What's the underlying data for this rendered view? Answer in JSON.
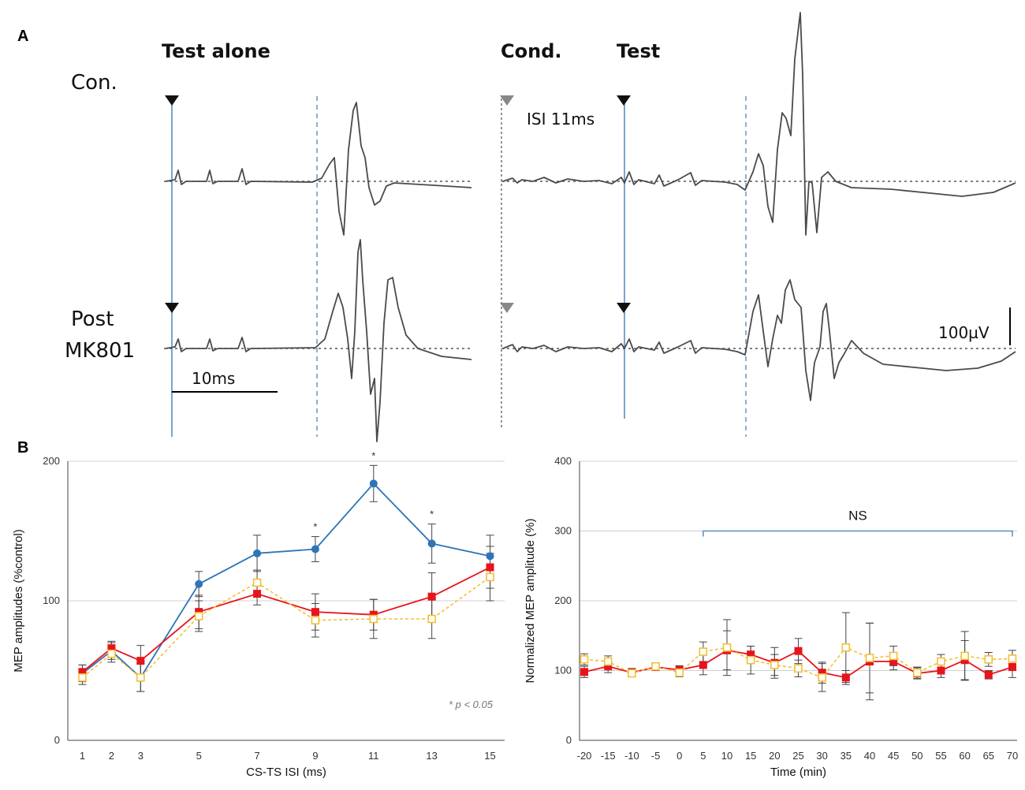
{
  "panel_a": {
    "letter": "A",
    "header_test_alone": "Test alone",
    "header_cond": "Cond.",
    "header_test": "Test",
    "row_con": "Con.",
    "row_post_line1": "Post",
    "row_post_line2": "MK801",
    "isi_label": "ISI 11ms",
    "time_scale": "10ms",
    "amp_scale": "100µV"
  },
  "panel_b_letter": "B",
  "chart_data": [
    {
      "type": "line",
      "title": "",
      "xlabel": "CS-TS ISI (ms)",
      "ylabel": "MEP amplitudes (%control)",
      "x": [
        1,
        2,
        3,
        5,
        7,
        9,
        11,
        13,
        15
      ],
      "xlim": [
        0.5,
        15.5
      ],
      "ylim": [
        0,
        200
      ],
      "yticks": [
        0,
        100,
        200
      ],
      "grid": true,
      "annotation": "* p < 0.05",
      "significance_at": [
        9,
        11,
        13
      ],
      "series": [
        {
          "name": "blue",
          "color": "#2e75b6",
          "marker": "circle",
          "dashed": false,
          "values": [
            48,
            64,
            45,
            112,
            134,
            137,
            184,
            141,
            132
          ],
          "errors": [
            6,
            6,
            10,
            9,
            13,
            9,
            13,
            14,
            15
          ]
        },
        {
          "name": "red",
          "color": "#e8141b",
          "marker": "square",
          "dashed": false,
          "values": [
            49,
            66,
            57,
            92,
            105,
            92,
            90,
            103,
            124
          ],
          "errors": [
            5,
            5,
            11,
            12,
            8,
            13,
            11,
            17,
            15
          ]
        },
        {
          "name": "yellow",
          "color": "#f2c037",
          "marker": "open-square",
          "dashed": true,
          "values": [
            45,
            62,
            45,
            89,
            113,
            86,
            87,
            87,
            117
          ],
          "errors": [
            5,
            6,
            10,
            11,
            9,
            12,
            14,
            14,
            17
          ]
        }
      ]
    },
    {
      "type": "line",
      "title": "",
      "xlabel": "Time (min)",
      "ylabel": "Normalized MEP amplitude (%)",
      "x": [
        -20,
        -15,
        -10,
        -5,
        0,
        5,
        10,
        15,
        20,
        25,
        30,
        35,
        40,
        45,
        50,
        55,
        60,
        65,
        70
      ],
      "xticks": [
        "-20",
        "-15",
        "-10",
        "-5",
        "0",
        "5",
        "10",
        "15",
        "20",
        "25",
        "30",
        "35",
        "40",
        "45",
        "50",
        "55",
        "60",
        "65",
        "70"
      ],
      "xlim": [
        -21,
        71
      ],
      "ylim": [
        0,
        400
      ],
      "yticks": [
        0,
        100,
        200,
        300,
        400
      ],
      "grid": true,
      "bracket": {
        "label": "NS",
        "from": 5,
        "to": 70,
        "y": 300
      },
      "series": [
        {
          "name": "red",
          "color": "#e8141b",
          "marker": "square",
          "dashed": false,
          "values": [
            98,
            106,
            97,
            105,
            101,
            108,
            129,
            123,
            111,
            128,
            97,
            90,
            113,
            113,
            96,
            100,
            115,
            94,
            105
          ],
          "errors": [
            8,
            9,
            6,
            4,
            6,
            14,
            28,
            12,
            22,
            18,
            15,
            10,
            55,
            12,
            8,
            10,
            28,
            6,
            15
          ]
        },
        {
          "name": "yellow",
          "color": "#f2c037",
          "marker": "open-square",
          "dashed": true,
          "values": [
            116,
            113,
            96,
            106,
            97,
            127,
            133,
            115,
            108,
            103,
            90,
            133,
            118,
            121,
            97,
            113,
            121,
            116,
            117
          ],
          "errors": [
            8,
            8,
            5,
            4,
            6,
            14,
            40,
            20,
            15,
            12,
            20,
            50,
            50,
            14,
            8,
            10,
            35,
            10,
            12
          ]
        }
      ]
    }
  ]
}
